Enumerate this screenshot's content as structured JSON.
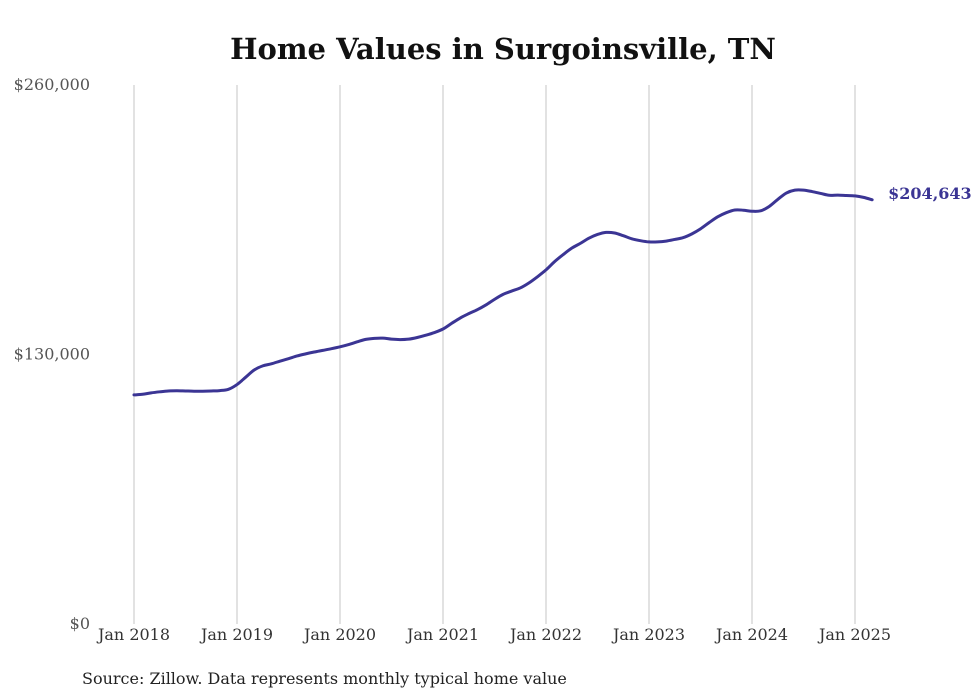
{
  "chart_data": {
    "type": "line",
    "title": "Home Values in Surgoinsville, TN",
    "source": "Source: Zillow. Data represents monthly typical home value",
    "ylim": [
      0,
      260000
    ],
    "y_ticks": [
      {
        "value": 0,
        "label": "$0"
      },
      {
        "value": 130000,
        "label": "$130,000"
      },
      {
        "value": 260000,
        "label": "$260,000"
      }
    ],
    "x_ticks": [
      {
        "value": "2018-01",
        "label": "Jan 2018"
      },
      {
        "value": "2019-01",
        "label": "Jan 2019"
      },
      {
        "value": "2020-01",
        "label": "Jan 2020"
      },
      {
        "value": "2021-01",
        "label": "Jan 2021"
      },
      {
        "value": "2022-01",
        "label": "Jan 2022"
      },
      {
        "value": "2023-01",
        "label": "Jan 2023"
      },
      {
        "value": "2024-01",
        "label": "Jan 2024"
      },
      {
        "value": "2025-01",
        "label": "Jan 2025"
      }
    ],
    "grid": "vertical",
    "line_color": "#3b3594",
    "end_label": "$204,643",
    "series": [
      {
        "points": [
          [
            "2018-01",
            110500
          ],
          [
            "2018-02",
            110800
          ],
          [
            "2018-03",
            111500
          ],
          [
            "2018-04",
            112000
          ],
          [
            "2018-05",
            112400
          ],
          [
            "2018-06",
            112500
          ],
          [
            "2018-07",
            112400
          ],
          [
            "2018-08",
            112300
          ],
          [
            "2018-09",
            112300
          ],
          [
            "2018-10",
            112400
          ],
          [
            "2018-11",
            112600
          ],
          [
            "2018-12",
            113200
          ],
          [
            "2019-01",
            115500
          ],
          [
            "2019-02",
            119000
          ],
          [
            "2019-03",
            122500
          ],
          [
            "2019-04",
            124500
          ],
          [
            "2019-05",
            125500
          ],
          [
            "2019-06",
            126800
          ],
          [
            "2019-07",
            128000
          ],
          [
            "2019-08",
            129300
          ],
          [
            "2019-09",
            130300
          ],
          [
            "2019-10",
            131200
          ],
          [
            "2019-11",
            132000
          ],
          [
            "2019-12",
            132800
          ],
          [
            "2020-01",
            133700
          ],
          [
            "2020-02",
            134800
          ],
          [
            "2020-03",
            136100
          ],
          [
            "2020-04",
            137300
          ],
          [
            "2020-05",
            137800
          ],
          [
            "2020-06",
            137900
          ],
          [
            "2020-07",
            137400
          ],
          [
            "2020-08",
            137200
          ],
          [
            "2020-09",
            137400
          ],
          [
            "2020-10",
            138200
          ],
          [
            "2020-11",
            139300
          ],
          [
            "2020-12",
            140600
          ],
          [
            "2021-01",
            142300
          ],
          [
            "2021-02",
            145000
          ],
          [
            "2021-03",
            147600
          ],
          [
            "2021-04",
            149700
          ],
          [
            "2021-05",
            151600
          ],
          [
            "2021-06",
            153900
          ],
          [
            "2021-07",
            156600
          ],
          [
            "2021-08",
            159000
          ],
          [
            "2021-09",
            160600
          ],
          [
            "2021-10",
            162100
          ],
          [
            "2021-11",
            164500
          ],
          [
            "2021-12",
            167500
          ],
          [
            "2022-01",
            170800
          ],
          [
            "2022-02",
            174800
          ],
          [
            "2022-03",
            178200
          ],
          [
            "2022-04",
            181300
          ],
          [
            "2022-05",
            183600
          ],
          [
            "2022-06",
            186100
          ],
          [
            "2022-07",
            187900
          ],
          [
            "2022-08",
            188900
          ],
          [
            "2022-09",
            188600
          ],
          [
            "2022-10",
            187300
          ],
          [
            "2022-11",
            185800
          ],
          [
            "2022-12",
            184900
          ],
          [
            "2023-01",
            184300
          ],
          [
            "2023-02",
            184300
          ],
          [
            "2023-03",
            184700
          ],
          [
            "2023-04",
            185500
          ],
          [
            "2023-05",
            186400
          ],
          [
            "2023-06",
            188200
          ],
          [
            "2023-07",
            190600
          ],
          [
            "2023-08",
            193600
          ],
          [
            "2023-09",
            196400
          ],
          [
            "2023-10",
            198400
          ],
          [
            "2023-11",
            199700
          ],
          [
            "2023-12",
            199600
          ],
          [
            "2024-01",
            199100
          ],
          [
            "2024-02",
            199300
          ],
          [
            "2024-03",
            201400
          ],
          [
            "2024-04",
            204800
          ],
          [
            "2024-05",
            207900
          ],
          [
            "2024-06",
            209300
          ],
          [
            "2024-07",
            209300
          ],
          [
            "2024-08",
            208600
          ],
          [
            "2024-09",
            207700
          ],
          [
            "2024-10",
            206800
          ],
          [
            "2024-11",
            206900
          ],
          [
            "2024-12",
            206700
          ],
          [
            "2025-01",
            206500
          ],
          [
            "2025-02",
            205800
          ],
          [
            "2025-03",
            204643
          ]
        ]
      }
    ]
  }
}
